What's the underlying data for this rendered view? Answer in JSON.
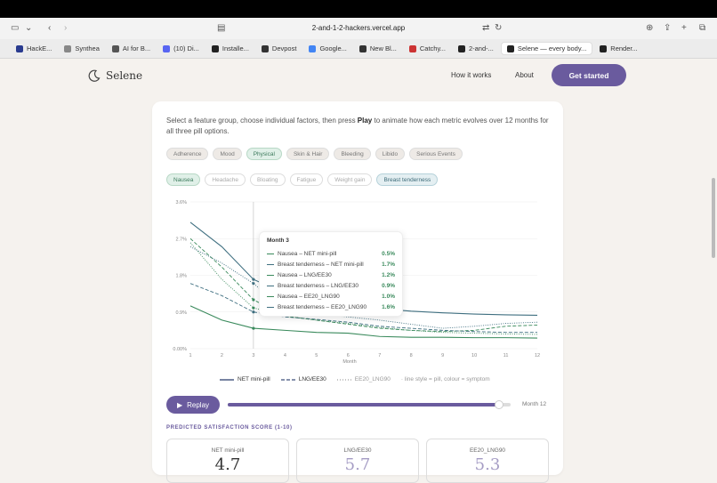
{
  "browser": {
    "url": "2-and-1-2-hackers.vercel.app",
    "tabs": [
      {
        "label": "HackE...",
        "color": "#2a3b8f"
      },
      {
        "label": "Synthea",
        "color": "#888"
      },
      {
        "label": "AI for B...",
        "color": "#555"
      },
      {
        "label": "(10) Di...",
        "color": "#5865f2"
      },
      {
        "label": "Installe...",
        "color": "#222"
      },
      {
        "label": "Devpost",
        "color": "#333"
      },
      {
        "label": "Google...",
        "color": "#4285f4"
      },
      {
        "label": "New Bl...",
        "color": "#333"
      },
      {
        "label": "Catchy...",
        "color": "#c33"
      },
      {
        "label": "2-and-...",
        "color": "#222"
      },
      {
        "label": "Selene — every body...",
        "color": "#222",
        "active": true
      },
      {
        "label": "Render...",
        "color": "#222"
      }
    ]
  },
  "nav": {
    "brand": "Selene",
    "links": [
      "How it works",
      "About"
    ],
    "cta": "Get started"
  },
  "intro": {
    "before": "Select a feature group, choose individual factors, then press ",
    "bold": "Play",
    "after": " to animate how each metric evolves over 12 months for all three pill options."
  },
  "groups": [
    {
      "label": "Adherence",
      "on": false
    },
    {
      "label": "Mood",
      "on": false
    },
    {
      "label": "Physical",
      "on": true
    },
    {
      "label": "Skin & Hair",
      "on": false
    },
    {
      "label": "Bleeding",
      "on": false
    },
    {
      "label": "Libido",
      "on": false
    },
    {
      "label": "Serious Events",
      "on": false
    }
  ],
  "factors": [
    {
      "label": "Nausea",
      "state": "green"
    },
    {
      "label": "Headache",
      "state": "off"
    },
    {
      "label": "Bloating",
      "state": "off"
    },
    {
      "label": "Fatigue",
      "state": "off"
    },
    {
      "label": "Weight gain",
      "state": "off"
    },
    {
      "label": "Breast tenderness",
      "state": "blue"
    }
  ],
  "chart_data": {
    "type": "line",
    "xlabel": "Month",
    "x": [
      1,
      2,
      3,
      4,
      5,
      6,
      7,
      8,
      9,
      10,
      11,
      12
    ],
    "ylim": [
      0,
      3.6
    ],
    "yticks": [
      "0.00%",
      "0.9%",
      "1.8%",
      "2.7%",
      "3.6%"
    ],
    "series": [
      {
        "name": "Nausea – NET mini-pill",
        "color": "#3a8a5c",
        "dash": "solid",
        "values": [
          1.05,
          0.7,
          0.5,
          0.45,
          0.4,
          0.38,
          0.3,
          0.28,
          0.28,
          0.27,
          0.27,
          0.26
        ]
      },
      {
        "name": "Breast tenderness – NET mini-pill",
        "color": "#3f6f80",
        "dash": "solid",
        "values": [
          3.1,
          2.5,
          1.7,
          1.35,
          1.15,
          1.05,
          0.98,
          0.92,
          0.88,
          0.85,
          0.83,
          0.82
        ]
      },
      {
        "name": "Nausea – LNG/EE30",
        "color": "#3a8a5c",
        "dash": "dashed",
        "values": [
          2.7,
          2.0,
          1.2,
          0.8,
          0.7,
          0.6,
          0.5,
          0.45,
          0.42,
          0.45,
          0.55,
          0.58
        ]
      },
      {
        "name": "Breast tenderness – LNG/EE30",
        "color": "#3f6f80",
        "dash": "dashed",
        "values": [
          1.6,
          1.3,
          0.9,
          0.78,
          0.72,
          0.65,
          0.55,
          0.5,
          0.45,
          0.42,
          0.4,
          0.4
        ]
      },
      {
        "name": "Nausea – EE20_LNG90",
        "color": "#3a8a5c",
        "dash": "dotted",
        "values": [
          2.6,
          1.7,
          1.0,
          0.8,
          0.7,
          0.62,
          0.52,
          0.45,
          0.4,
          0.38,
          0.36,
          0.35
        ]
      },
      {
        "name": "Breast tenderness – EE20_LNG90",
        "color": "#3f6f80",
        "dash": "dotted",
        "values": [
          2.5,
          2.1,
          1.6,
          0.95,
          0.85,
          0.78,
          0.7,
          0.6,
          0.5,
          0.55,
          0.62,
          0.65
        ]
      }
    ],
    "tooltip": {
      "title": "Month 3",
      "values": [
        "0.5%",
        "1.7%",
        "1.2%",
        "0.9%",
        "1.0%",
        "1.6%"
      ]
    }
  },
  "legend": {
    "items": [
      "NET mini-pill",
      "LNG/EE30",
      "EE20_LNG90"
    ],
    "note": "· line style = pill, colour = symptom"
  },
  "player": {
    "replay": "Replay",
    "progress": 0.96,
    "month_label": "Month 12"
  },
  "scores": {
    "heading": "PREDICTED SATISFACTION SCORE (1-10)",
    "cards": [
      {
        "name": "NET mini-pill",
        "value": "4.7"
      },
      {
        "name": "LNG/EE30",
        "value": "5.7"
      },
      {
        "name": "EE20_LNG90",
        "value": "5.3"
      }
    ]
  }
}
